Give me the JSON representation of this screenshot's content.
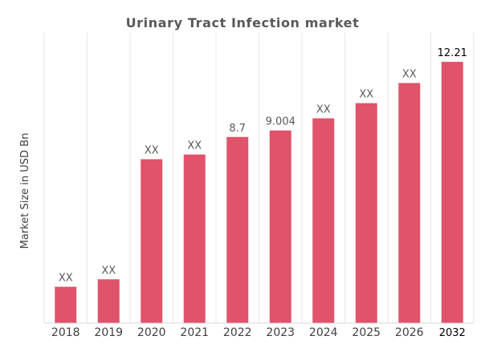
{
  "chart_data": {
    "type": "bar",
    "title": "Urinary Tract Infection market",
    "xlabel": "",
    "ylabel": "Market Size in USD Bn",
    "categories": [
      "2018",
      "2019",
      "2020",
      "2021",
      "2022",
      "2023",
      "2024",
      "2025",
      "2026",
      "2032"
    ],
    "values": [
      1.7,
      2.05,
      7.66,
      7.88,
      8.7,
      9.004,
      9.57,
      10.28,
      11.22,
      12.21
    ],
    "data_labels": [
      "XX",
      "XX",
      "XX",
      "XX",
      "8.7",
      "9.004",
      "XX",
      "XX",
      "XX",
      "12.21"
    ],
    "ylim": [
      0,
      13.6
    ],
    "grid": "vertical category gridlines",
    "legend": "none",
    "colors": {
      "bar": "#e0536a",
      "grid": "#e6e6e6",
      "axis": "#d9d9d9"
    }
  }
}
